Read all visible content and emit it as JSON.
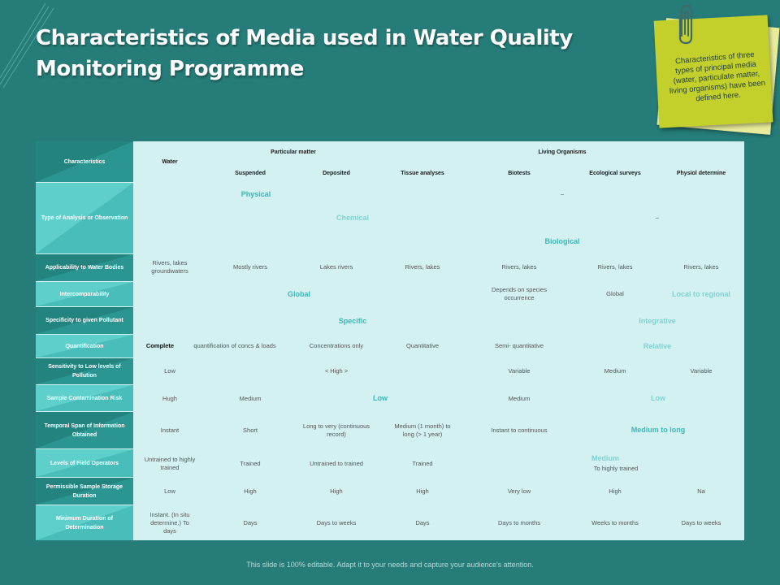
{
  "slide": {
    "title_line1": "Characteristics of Media used in Water Quality",
    "title_line2": "Monitoring Programme",
    "note": "Characteristics of three types of principal media (water, particulate matter, living organisms) have been defined here.",
    "footer": "This slide is 100% editable. Adapt it to your needs and capture your audience's attention."
  },
  "table": {
    "header": {
      "characteristics": "Characteristics",
      "water": "Water",
      "particulate": "Particular matter",
      "living": "Living Organisms",
      "suspended": "Suspended",
      "deposited": "Deposited",
      "tissue": "Tissue analyses",
      "biotests": "Biotests",
      "ecological": "Ecological surveys",
      "physiol": "Physiol determine"
    },
    "rows": {
      "type_analysis": {
        "label": "Type of Analysis or Observation",
        "physical": "Physical",
        "dash1": "–",
        "chemical": "Chemical",
        "dash2": "–",
        "biological": "Biological"
      },
      "applicability": {
        "label": "Applicability to Water Bodies",
        "water": "Rivers, lakes groundwaters",
        "suspended": "Mostly rivers",
        "deposited": "Lakes rivers",
        "tissue": "Rivers, lakes",
        "biotests": "Rivers, lakes",
        "ecological": "Rivers, lakes",
        "physiol": "Rivers, lakes"
      },
      "intercomparability": {
        "label": "Intercomparability",
        "global": "Global",
        "biotests": "Depends on species occurrence",
        "ecological": "Global",
        "physiol": "Local to regional"
      },
      "specificity": {
        "label": "Specificity to given Pollutant",
        "specific": "Specific",
        "integrative": "Integrative"
      },
      "quantification": {
        "label": "Quantification",
        "water": "Complete",
        "suspended": "quantification of concs & loads",
        "deposited": "Concentrations only",
        "tissue": "Quantitative",
        "biotests": "Semi- quantitative",
        "relative": "Relative"
      },
      "sensitivity": {
        "label": "Sensitivity to Low levels of Pollution",
        "water": "Low",
        "high": "< High >",
        "biotests": "Variable",
        "ecological": "Medium",
        "physiol": "Variable"
      },
      "contamination": {
        "label": "Sample Contamination Risk",
        "water": "Hugh",
        "suspended": "Medium",
        "low1": "Low",
        "biotests": "Medium",
        "low2": "Low"
      },
      "temporal": {
        "label": "Temporal Span of Information Obtained",
        "water": "Instant",
        "suspended": "Short",
        "deposited": "Long to very (continuous record)",
        "tissue": "Medium (1 month) to long (> 1 year)",
        "biotests": "Instant to continuous",
        "medium_long": "Medium to long"
      },
      "operators": {
        "label": "Levels of Field Operators",
        "water": "Untrained to highly trained",
        "suspended": "Trained",
        "deposited": "Untrained to trained",
        "tissue": "Trained",
        "medium": "Medium",
        "highly": "To highly trained"
      },
      "storage": {
        "label": "Permissible Sample Storage Duration",
        "water": "Low",
        "suspended": "High",
        "deposited": "High",
        "tissue": "High",
        "biotests": "Very low",
        "ecological": "High",
        "physiol": "Na"
      },
      "duration": {
        "label": "Minimum Duration of Determination",
        "water": "Instant. (In situ determine.) To days",
        "suspended": "Days",
        "deposited": "Days to weeks",
        "tissue": "Days",
        "biotests": "Days to months",
        "ecological": "Weeks to months",
        "physiol": "Days to weeks"
      }
    }
  },
  "colors": {
    "background": "#257c78",
    "table_bg": "#d3f1f1",
    "label_dark": "#23837f",
    "label_light": "#5fcfcb",
    "accent": "#3bb8b8",
    "note": "#c3cf2b"
  }
}
